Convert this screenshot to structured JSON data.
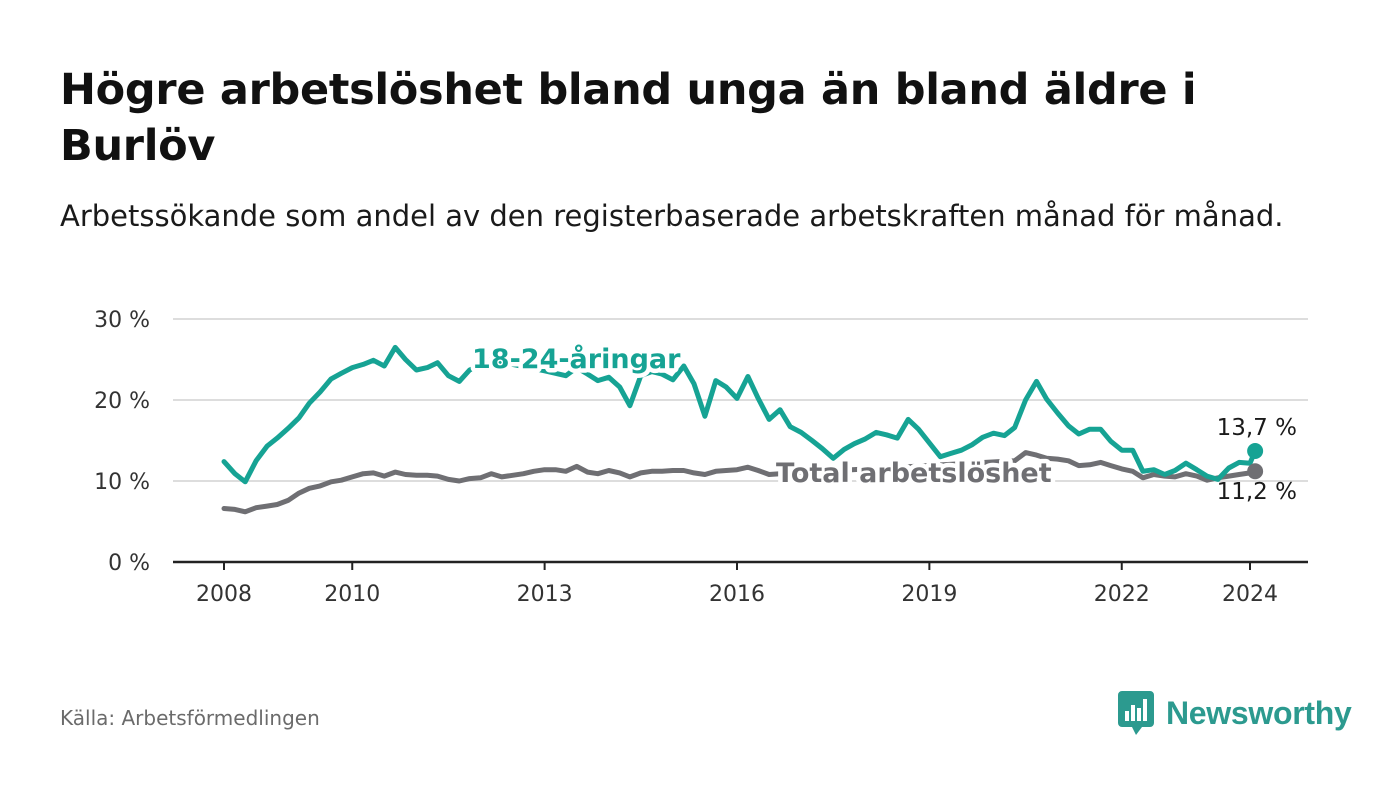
{
  "title": "Högre arbetslöshet bland unga än bland äldre i Burlöv",
  "subtitle": "Arbetssökande som andel av den registerbaserade arbetskraften månad för månad.",
  "source": "Källa: Arbetsförmedlingen",
  "brand": {
    "name": "Newsworthy",
    "color": "#2c9a8f",
    "icon": "newsworthy-chart-bubble-icon"
  },
  "chart_data": {
    "type": "line",
    "title": "Högre arbetslöshet bland unga än bland äldre i Burlöv",
    "xlabel": "",
    "ylabel": "",
    "xlim": [
      2007.8,
      2024.9
    ],
    "ylim": [
      0,
      30
    ],
    "x_ticks": [
      2008,
      2010,
      2013,
      2016,
      2019,
      2022,
      2024
    ],
    "y_ticks": [
      0,
      10,
      20,
      30
    ],
    "y_tick_labels": [
      "0 %",
      "10 %",
      "20 %",
      "30 %"
    ],
    "grid": true,
    "series": [
      {
        "name": "18-24-åringar",
        "label": "18-24-åringar",
        "color": "#16a394",
        "end_label": "13,7 %",
        "points": [
          [
            2008.0,
            12.4
          ],
          [
            2008.17,
            10.9
          ],
          [
            2008.33,
            9.9
          ],
          [
            2008.5,
            12.5
          ],
          [
            2008.67,
            14.3
          ],
          [
            2008.83,
            15.3
          ],
          [
            2009.0,
            16.5
          ],
          [
            2009.17,
            17.8
          ],
          [
            2009.33,
            19.6
          ],
          [
            2009.5,
            21.0
          ],
          [
            2009.67,
            22.6
          ],
          [
            2009.83,
            23.3
          ],
          [
            2010.0,
            24.0
          ],
          [
            2010.17,
            24.4
          ],
          [
            2010.33,
            24.9
          ],
          [
            2010.5,
            24.2
          ],
          [
            2010.67,
            26.5
          ],
          [
            2010.83,
            25.0
          ],
          [
            2011.0,
            23.7
          ],
          [
            2011.17,
            24.0
          ],
          [
            2011.33,
            24.6
          ],
          [
            2011.5,
            23.0
          ],
          [
            2011.67,
            22.3
          ],
          [
            2011.83,
            23.7
          ],
          [
            2012.0,
            24.3
          ],
          [
            2012.17,
            25.0
          ],
          [
            2012.5,
            24.4
          ],
          [
            2013.0,
            23.6
          ],
          [
            2013.33,
            23.0
          ],
          [
            2013.5,
            24.0
          ],
          [
            2013.67,
            23.2
          ],
          [
            2013.83,
            22.4
          ],
          [
            2014.0,
            22.8
          ],
          [
            2014.17,
            21.6
          ],
          [
            2014.33,
            19.3
          ],
          [
            2014.5,
            23.0
          ],
          [
            2014.67,
            23.5
          ],
          [
            2014.83,
            23.2
          ],
          [
            2015.0,
            22.5
          ],
          [
            2015.17,
            24.2
          ],
          [
            2015.33,
            22.0
          ],
          [
            2015.5,
            18.0
          ],
          [
            2015.67,
            22.4
          ],
          [
            2015.83,
            21.6
          ],
          [
            2016.0,
            20.2
          ],
          [
            2016.17,
            22.9
          ],
          [
            2016.33,
            20.2
          ],
          [
            2016.5,
            17.6
          ],
          [
            2016.67,
            18.8
          ],
          [
            2016.83,
            16.7
          ],
          [
            2017.0,
            16.0
          ],
          [
            2017.17,
            15.0
          ],
          [
            2017.33,
            14.0
          ],
          [
            2017.5,
            12.8
          ],
          [
            2017.67,
            13.9
          ],
          [
            2017.83,
            14.6
          ],
          [
            2018.0,
            15.2
          ],
          [
            2018.17,
            16.0
          ],
          [
            2018.33,
            15.7
          ],
          [
            2018.5,
            15.3
          ],
          [
            2018.67,
            17.6
          ],
          [
            2018.83,
            16.4
          ],
          [
            2019.0,
            14.7
          ],
          [
            2019.17,
            13.0
          ],
          [
            2019.33,
            13.4
          ],
          [
            2019.5,
            13.8
          ],
          [
            2019.67,
            14.5
          ],
          [
            2019.83,
            15.4
          ],
          [
            2020.0,
            15.9
          ],
          [
            2020.17,
            15.6
          ],
          [
            2020.33,
            16.6
          ],
          [
            2020.5,
            20.0
          ],
          [
            2020.67,
            22.3
          ],
          [
            2020.83,
            20.1
          ],
          [
            2021.0,
            18.4
          ],
          [
            2021.17,
            16.8
          ],
          [
            2021.33,
            15.8
          ],
          [
            2021.5,
            16.4
          ],
          [
            2021.67,
            16.4
          ],
          [
            2021.83,
            14.9
          ],
          [
            2022.0,
            13.8
          ],
          [
            2022.17,
            13.8
          ],
          [
            2022.33,
            11.2
          ],
          [
            2022.5,
            11.4
          ],
          [
            2022.67,
            10.8
          ],
          [
            2022.83,
            11.3
          ],
          [
            2023.0,
            12.2
          ],
          [
            2023.17,
            11.4
          ],
          [
            2023.33,
            10.6
          ],
          [
            2023.5,
            10.2
          ],
          [
            2023.67,
            11.6
          ],
          [
            2023.83,
            12.3
          ],
          [
            2024.0,
            12.2
          ],
          [
            2024.08,
            13.7
          ]
        ]
      },
      {
        "name": "Total arbetslöshet",
        "label": "Total arbetslöshet",
        "color": "#6f6f73",
        "end_label": "11,2 %",
        "points": [
          [
            2008.0,
            6.6
          ],
          [
            2008.17,
            6.5
          ],
          [
            2008.33,
            6.2
          ],
          [
            2008.5,
            6.7
          ],
          [
            2008.67,
            6.9
          ],
          [
            2008.83,
            7.1
          ],
          [
            2009.0,
            7.6
          ],
          [
            2009.17,
            8.5
          ],
          [
            2009.33,
            9.1
          ],
          [
            2009.5,
            9.4
          ],
          [
            2009.67,
            9.9
          ],
          [
            2009.83,
            10.1
          ],
          [
            2010.0,
            10.5
          ],
          [
            2010.17,
            10.9
          ],
          [
            2010.33,
            11.0
          ],
          [
            2010.5,
            10.6
          ],
          [
            2010.67,
            11.1
          ],
          [
            2010.83,
            10.8
          ],
          [
            2011.0,
            10.7
          ],
          [
            2011.17,
            10.7
          ],
          [
            2011.33,
            10.6
          ],
          [
            2011.5,
            10.2
          ],
          [
            2011.67,
            10.0
          ],
          [
            2011.83,
            10.3
          ],
          [
            2012.0,
            10.4
          ],
          [
            2012.17,
            10.9
          ],
          [
            2012.33,
            10.5
          ],
          [
            2012.5,
            10.7
          ],
          [
            2012.67,
            10.9
          ],
          [
            2012.83,
            11.2
          ],
          [
            2013.0,
            11.4
          ],
          [
            2013.17,
            11.4
          ],
          [
            2013.33,
            11.2
          ],
          [
            2013.5,
            11.8
          ],
          [
            2013.67,
            11.1
          ],
          [
            2013.83,
            10.9
          ],
          [
            2014.0,
            11.3
          ],
          [
            2014.17,
            11.0
          ],
          [
            2014.33,
            10.5
          ],
          [
            2014.5,
            11.0
          ],
          [
            2014.67,
            11.2
          ],
          [
            2014.83,
            11.2
          ],
          [
            2015.0,
            11.3
          ],
          [
            2015.17,
            11.3
          ],
          [
            2015.33,
            11.0
          ],
          [
            2015.5,
            10.8
          ],
          [
            2015.67,
            11.2
          ],
          [
            2015.83,
            11.3
          ],
          [
            2016.0,
            11.4
          ],
          [
            2016.17,
            11.7
          ],
          [
            2016.33,
            11.3
          ],
          [
            2016.5,
            10.8
          ],
          [
            2016.67,
            10.9
          ],
          [
            2020.33,
            12.5
          ],
          [
            2020.5,
            13.5
          ],
          [
            2020.67,
            13.2
          ],
          [
            2020.83,
            12.8
          ],
          [
            2021.0,
            12.7
          ],
          [
            2021.17,
            12.5
          ],
          [
            2021.33,
            11.9
          ],
          [
            2021.5,
            12.0
          ],
          [
            2021.67,
            12.3
          ],
          [
            2021.83,
            11.9
          ],
          [
            2022.0,
            11.5
          ],
          [
            2022.17,
            11.2
          ],
          [
            2022.33,
            10.4
          ],
          [
            2022.5,
            10.8
          ],
          [
            2022.67,
            10.6
          ],
          [
            2022.83,
            10.5
          ],
          [
            2023.0,
            10.9
          ],
          [
            2023.17,
            10.6
          ],
          [
            2023.33,
            10.1
          ],
          [
            2023.5,
            10.4
          ],
          [
            2023.67,
            10.6
          ],
          [
            2023.83,
            10.8
          ],
          [
            2024.0,
            11.0
          ],
          [
            2024.08,
            11.2
          ]
        ]
      }
    ]
  }
}
